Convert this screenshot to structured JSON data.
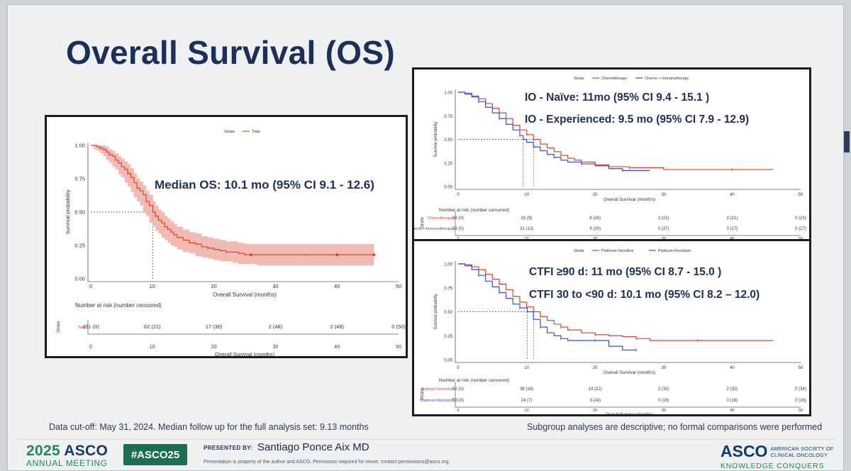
{
  "slide": {
    "title": "Overall Survival (OS)",
    "footnote_left": "Data cut-off: May 31, 2024. Median follow up for the full analysis set: 9.13 months",
    "footnote_right": "Subgroup analyses are descriptive; no formal comparisons were performed",
    "footer": {
      "meeting_year": "2025",
      "meeting_org": "ASCO",
      "meeting_sub": "ANNUAL MEETING",
      "hashtag": "#ASCO25",
      "presented_by_label": "PRESENTED BY:",
      "presenter": "Santiago Ponce Aix MD",
      "copyright": "Presentation is property of the author and ASCO. Permission required for reuse; contact permissions@asco.org",
      "logo_word": "ASCO",
      "logo_society_1": "AMERICAN SOCIETY OF",
      "logo_society_2": "CLINICAL ONCOLOGY",
      "logo_tagline": "KNOWLEDGE CONQUERS CANCER"
    }
  },
  "colors": {
    "title": "#1b2f57",
    "red": "#d9472b",
    "blue": "#3b4bd6",
    "ci_band": "#eeaaa0",
    "annotation": "#1b2f57"
  },
  "chart_data": [
    {
      "type": "line",
      "name": "overall",
      "legend_title": "Strata",
      "annotation": "Median OS: 10.1 mo (95% CI 9.1 - 12.6)",
      "xlabel": "Overall Survival (months)",
      "ylabel": "Survival probability",
      "xlim": [
        0,
        50
      ],
      "ylim": [
        0,
        1
      ],
      "xticks": [
        0,
        10,
        20,
        30,
        40,
        50
      ],
      "yticks": [
        "0.00",
        "0.25",
        "0.50",
        "0.75",
        "1.00"
      ],
      "median_x": 10.1,
      "series": [
        {
          "name": "Total",
          "color": "#d9472b",
          "x": [
            0,
            0.5,
            1,
            1.5,
            2,
            2.5,
            3,
            3.5,
            4,
            4.5,
            5,
            5.5,
            6,
            6.5,
            7,
            7.5,
            8,
            8.5,
            9,
            9.5,
            10.1,
            10.5,
            11,
            11.5,
            12,
            12.5,
            13,
            13.5,
            14,
            15,
            16,
            17,
            18,
            19,
            20,
            21,
            22,
            23,
            24,
            25,
            27,
            30,
            35,
            40,
            46
          ],
          "y": [
            1.0,
            1.0,
            0.99,
            0.98,
            0.97,
            0.95,
            0.93,
            0.92,
            0.89,
            0.87,
            0.84,
            0.82,
            0.79,
            0.76,
            0.72,
            0.68,
            0.66,
            0.63,
            0.58,
            0.55,
            0.5,
            0.47,
            0.44,
            0.42,
            0.39,
            0.37,
            0.35,
            0.33,
            0.31,
            0.29,
            0.27,
            0.26,
            0.24,
            0.23,
            0.22,
            0.21,
            0.2,
            0.2,
            0.19,
            0.18,
            0.18,
            0.18,
            0.18,
            0.18,
            0.18
          ],
          "lower": [
            1.0,
            1.0,
            0.97,
            0.96,
            0.94,
            0.92,
            0.89,
            0.87,
            0.84,
            0.82,
            0.78,
            0.76,
            0.72,
            0.69,
            0.65,
            0.61,
            0.58,
            0.55,
            0.5,
            0.47,
            0.42,
            0.39,
            0.36,
            0.34,
            0.31,
            0.29,
            0.27,
            0.25,
            0.24,
            0.22,
            0.2,
            0.19,
            0.17,
            0.16,
            0.15,
            0.14,
            0.13,
            0.13,
            0.12,
            0.11,
            0.11,
            0.1,
            0.1,
            0.1,
            0.1
          ],
          "upper": [
            1.0,
            1.0,
            1.0,
            1.0,
            1.0,
            0.99,
            0.97,
            0.96,
            0.94,
            0.92,
            0.9,
            0.88,
            0.86,
            0.83,
            0.79,
            0.75,
            0.73,
            0.7,
            0.66,
            0.63,
            0.58,
            0.55,
            0.52,
            0.5,
            0.47,
            0.45,
            0.43,
            0.41,
            0.39,
            0.37,
            0.35,
            0.34,
            0.32,
            0.31,
            0.3,
            0.29,
            0.28,
            0.28,
            0.27,
            0.26,
            0.26,
            0.26,
            0.26,
            0.26,
            0.26
          ]
        }
      ],
      "censor_marks": [
        26,
        40,
        46
      ],
      "risk_table": {
        "title": "Number at risk (number censored)",
        "axis_label": "Strata",
        "rows": [
          {
            "label": "Total",
            "color": "#d9472b",
            "values": [
              "151 (0)",
              "62 (21)",
              "17 (36)",
              "2 (48)",
              "2 (48)",
              "0 (50)"
            ]
          }
        ]
      }
    },
    {
      "type": "line",
      "name": "io-status",
      "legend_title": "Strata",
      "annotation_lines": [
        "IO - Naïve: 11mo (95% CI 9.4 - 15.1 )",
        "IO - Experienced: 9.5 mo (95% CI 7.9 - 12.9)"
      ],
      "xlabel": "Overall Survival (months)",
      "ylabel": "Survival probability",
      "xlim": [
        0,
        50
      ],
      "ylim": [
        0,
        1
      ],
      "xticks": [
        0,
        10,
        20,
        30,
        40,
        50
      ],
      "yticks": [
        "0.00",
        "0.25",
        "0.50",
        "0.75",
        "1.00"
      ],
      "median_lines": [
        9.5,
        11
      ],
      "series": [
        {
          "name": "Chemotherapy",
          "color": "#d9472b",
          "x": [
            0,
            1,
            2,
            3,
            4,
            5,
            6,
            7,
            8,
            9,
            10,
            11,
            12,
            13,
            14,
            15,
            16,
            17,
            18,
            20,
            22,
            25,
            30,
            35,
            40,
            46
          ],
          "y": [
            1.0,
            0.99,
            0.96,
            0.93,
            0.88,
            0.83,
            0.78,
            0.72,
            0.65,
            0.6,
            0.55,
            0.5,
            0.45,
            0.41,
            0.37,
            0.33,
            0.3,
            0.28,
            0.26,
            0.23,
            0.21,
            0.2,
            0.18,
            0.18,
            0.18,
            0.18
          ]
        },
        {
          "name": "Chemo + Immunotherapy",
          "color": "#3b4bd6",
          "x": [
            0,
            1,
            2,
            3,
            4,
            5,
            6,
            7,
            8,
            9,
            9.5,
            10,
            11,
            12,
            13,
            14,
            15,
            16,
            18,
            20,
            22,
            24,
            26,
            28
          ],
          "y": [
            1.0,
            0.98,
            0.95,
            0.9,
            0.84,
            0.78,
            0.72,
            0.66,
            0.6,
            0.54,
            0.5,
            0.47,
            0.42,
            0.38,
            0.34,
            0.31,
            0.28,
            0.26,
            0.24,
            0.22,
            0.19,
            0.17,
            0.17,
            0.17
          ]
        }
      ],
      "risk_table": {
        "title": "Number at risk (number censored)",
        "axis_label": "Strata",
        "rows": [
          {
            "label": "Chemotherapy",
            "color": "#d9472b",
            "values": [
              "68 (0)",
              "31 (9)",
              "8 (16)",
              "2 (21)",
              "2 (21)",
              "0 (23)"
            ]
          },
          {
            "label": "Chemo + Immunotherapy",
            "color": "#3b4bd6",
            "values": [
              "83 (0)",
              "31 (12)",
              "9 (20)",
              "0 (27)",
              "0 (27)",
              "0 (27)"
            ]
          }
        ]
      }
    },
    {
      "type": "line",
      "name": "ctfi",
      "legend_title": "Strata",
      "annotation_lines": [
        "CTFI ≥90 d: 11 mo (95% CI 8.7 - 15.0 )",
        "CTFI 30 to <90 d: 10.1 mo (95% CI 8.2 – 12.0)"
      ],
      "xlabel": "Overall Survival (months)",
      "ylabel": "Survival probability",
      "xlim": [
        0,
        50
      ],
      "ylim": [
        0,
        1
      ],
      "xticks": [
        0,
        10,
        20,
        30,
        40,
        50
      ],
      "yticks": [
        "0.00",
        "0.25",
        "0.50",
        "0.75",
        "1.00"
      ],
      "median_lines": [
        10.1,
        11
      ],
      "series": [
        {
          "name": "Platinum-Sensitive",
          "color": "#d9472b",
          "x": [
            0,
            1,
            2,
            3,
            4,
            5,
            6,
            7,
            8,
            9,
            10,
            11,
            12,
            13,
            14,
            15,
            16,
            18,
            20,
            22,
            24,
            26,
            28,
            30,
            35,
            40,
            46
          ],
          "y": [
            1.0,
            0.99,
            0.97,
            0.94,
            0.89,
            0.84,
            0.79,
            0.73,
            0.66,
            0.6,
            0.55,
            0.5,
            0.45,
            0.41,
            0.37,
            0.34,
            0.31,
            0.28,
            0.26,
            0.25,
            0.24,
            0.22,
            0.2,
            0.2,
            0.2,
            0.2,
            0.2
          ]
        },
        {
          "name": "Platinum-Resistant",
          "color": "#3b4bd6",
          "x": [
            0,
            1,
            2,
            3,
            4,
            5,
            6,
            7,
            8,
            9,
            10.1,
            11,
            12,
            13,
            14,
            15,
            16,
            18,
            20,
            22,
            24,
            26
          ],
          "y": [
            1.0,
            0.98,
            0.94,
            0.88,
            0.82,
            0.76,
            0.7,
            0.64,
            0.58,
            0.54,
            0.5,
            0.42,
            0.34,
            0.28,
            0.25,
            0.22,
            0.2,
            0.2,
            0.2,
            0.14,
            0.1,
            0.1
          ]
        }
      ],
      "risk_table": {
        "title": "Number at risk (number censored)",
        "axis_label": "Strata",
        "rows": [
          {
            "label": "Platinum-Sensitive",
            "color": "#d9472b",
            "values": [
              "92 (0)",
              "38 (14)",
              "14 (22)",
              "2 (32)",
              "2 (32)",
              "0 (34)"
            ]
          },
          {
            "label": "Platinum-Resistant",
            "color": "#3b4bd6",
            "values": [
              "59 (0)",
              "24 (7)",
              "3 (14)",
              "0 (16)",
              "0 (16)",
              "0 (16)"
            ]
          }
        ]
      }
    }
  ]
}
